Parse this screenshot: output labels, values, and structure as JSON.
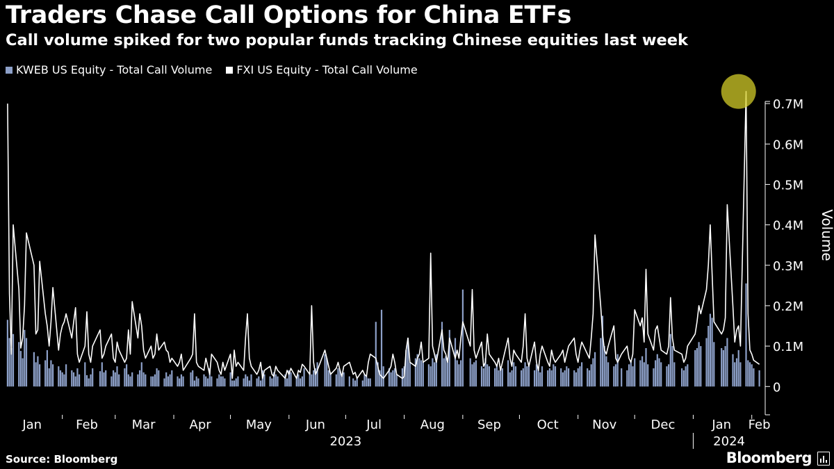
{
  "header": {
    "title": "Traders Chase Call Options for China ETFs",
    "subtitle": "Call volume spiked for two popular funds tracking Chinese equities last week"
  },
  "footer": {
    "source": "Source: Bloomberg",
    "brand": "Bloomberg"
  },
  "colors": {
    "background": "#000000",
    "kweb": "#8da0c8",
    "fxi": "#ffffff",
    "highlight": "#d9d22a"
  },
  "chart_data": {
    "type": "bar+line",
    "title": "Traders Chase Call Options for China ETFs",
    "subtitle": "Call volume spiked for two popular funds tracking Chinese equities last week",
    "ylabel": "Volume",
    "xlabel": "",
    "ylim": [
      -70000,
      750000
    ],
    "yticks": [
      0,
      100000,
      200000,
      300000,
      400000,
      500000,
      600000,
      700000
    ],
    "ytick_labels": [
      "0",
      "0.1M",
      "0.2M",
      "0.3M",
      "0.4M",
      "0.5M",
      "0.6M",
      "0.7M"
    ],
    "xlim": [
      "2022-12-30",
      "2024-02-07"
    ],
    "x_month_labels": [
      {
        "date": "2023-01-16",
        "label": "Jan"
      },
      {
        "date": "2023-02-14",
        "label": "Feb"
      },
      {
        "date": "2023-03-16",
        "label": "Mar"
      },
      {
        "date": "2023-04-15",
        "label": "Apr"
      },
      {
        "date": "2023-05-16",
        "label": "May"
      },
      {
        "date": "2023-06-15",
        "label": "Jun"
      },
      {
        "date": "2023-07-16",
        "label": "Jul"
      },
      {
        "date": "2023-08-16",
        "label": "Aug"
      },
      {
        "date": "2023-09-15",
        "label": "Sep"
      },
      {
        "date": "2023-10-16",
        "label": "Oct"
      },
      {
        "date": "2023-11-15",
        "label": "Nov"
      },
      {
        "date": "2023-12-16",
        "label": "Dec"
      },
      {
        "date": "2024-01-16",
        "label": "Jan"
      },
      {
        "date": "2024-02-05",
        "label": "Feb"
      }
    ],
    "x_month_boundaries": [
      "2023-02-01",
      "2023-03-01",
      "2023-04-01",
      "2023-05-01",
      "2023-06-01",
      "2023-07-01",
      "2023-08-01",
      "2023-09-01",
      "2023-10-01",
      "2023-11-01",
      "2023-12-01",
      "2024-01-01",
      "2024-02-01"
    ],
    "x_year_labels": [
      {
        "date": "2023-07-01",
        "label": "2023"
      },
      {
        "date": "2024-01-20",
        "label": "2024"
      }
    ],
    "year_boundary": "2024-01-01",
    "legend_position": "top-left",
    "grid": false,
    "highlight": {
      "series": "FXI US Equity - Total Call Volume",
      "date": "2024-01-25",
      "value": 730000
    },
    "dates_note": "Trading-day sequence from 2023-01-03 to 2024-02-02 in order.",
    "series": [
      {
        "name": "KWEB US Equity - Total Call Volume",
        "style": "bar",
        "color": "#8da0c8",
        "values": [
          165000,
          120000,
          95000,
          130000,
          110000,
          88000,
          70000,
          140000,
          120000,
          85000,
          60000,
          75000,
          55000,
          65000,
          90000,
          45000,
          65000,
          55000,
          50000,
          40000,
          35000,
          30000,
          55000,
          40000,
          35000,
          25000,
          45000,
          30000,
          60000,
          28000,
          20000,
          30000,
          45000,
          38000,
          60000,
          35000,
          40000,
          25000,
          40000,
          35000,
          50000,
          30000,
          45000,
          55000,
          30000,
          25000,
          35000,
          30000,
          40000,
          60000,
          35000,
          30000,
          25000,
          25000,
          30000,
          45000,
          40000,
          20000,
          35000,
          25000,
          30000,
          40000,
          25000,
          20000,
          30000,
          25000,
          35000,
          40000,
          15000,
          25000,
          20000,
          30000,
          25000,
          20000,
          45000,
          25000,
          20000,
          30000,
          25000,
          25000,
          20000,
          35000,
          15000,
          15000,
          20000,
          25000,
          20000,
          30000,
          25000,
          15000,
          30000,
          20000,
          25000,
          15000,
          40000,
          30000,
          25000,
          20000,
          35000,
          30000,
          25000,
          30000,
          20000,
          40000,
          35000,
          25000,
          30000,
          20000,
          25000,
          45000,
          35000,
          30000,
          40000,
          45000,
          60000,
          80000,
          70000,
          40000,
          35000,
          30000,
          45000,
          40000,
          30000,
          35000,
          25000,
          20000,
          15000,
          20000,
          15000,
          30000,
          25000,
          20000,
          20000,
          160000,
          60000,
          40000,
          190000,
          50000,
          45000,
          35000,
          40000,
          45000,
          30000,
          45000,
          50000,
          90000,
          120000,
          60000,
          70000,
          80000,
          70000,
          65000,
          60000,
          55000,
          50000,
          70000,
          60000,
          80000,
          160000,
          70000,
          75000,
          60000,
          140000,
          120000,
          65000,
          55000,
          65000,
          240000,
          70000,
          55000,
          60000,
          65000,
          50000,
          45000,
          70000,
          55000,
          50000,
          45000,
          55000,
          40000,
          50000,
          45000,
          65000,
          35000,
          40000,
          60000,
          50000,
          40000,
          45000,
          60000,
          50000,
          50000,
          40000,
          55000,
          45000,
          35000,
          50000,
          40000,
          45000,
          40000,
          55000,
          50000,
          45000,
          35000,
          40000,
          50000,
          45000,
          40000,
          35000,
          45000,
          50000,
          60000,
          45000,
          40000,
          55000,
          70000,
          85000,
          120000,
          175000,
          100000,
          75000,
          60000,
          50000,
          55000,
          80000,
          45000,
          40000,
          55000,
          60000,
          50000,
          70000,
          65000,
          75000,
          60000,
          95000,
          55000,
          45000,
          65000,
          80000,
          70000,
          60000,
          50000,
          55000,
          130000,
          100000,
          60000,
          45000,
          40000,
          50000,
          55000,
          90000,
          95000,
          110000,
          100000,
          120000,
          150000,
          180000,
          170000,
          110000,
          95000,
          90000,
          100000,
          120000,
          80000,
          60000,
          70000,
          90000,
          60000,
          255000,
          65000,
          60000,
          55000,
          45000,
          40000
        ]
      },
      {
        "name": "FXI US Equity - Total Call Volume",
        "style": "line",
        "color": "#ffffff",
        "values": [
          700000,
          230000,
          80000,
          400000,
          240000,
          95000,
          120000,
          200000,
          380000,
          300000,
          130000,
          140000,
          310000,
          180000,
          150000,
          100000,
          160000,
          245000,
          90000,
          130000,
          150000,
          160000,
          180000,
          120000,
          160000,
          195000,
          80000,
          60000,
          100000,
          185000,
          80000,
          60000,
          100000,
          140000,
          70000,
          80000,
          100000,
          130000,
          70000,
          60000,
          110000,
          90000,
          60000,
          70000,
          140000,
          80000,
          210000,
          120000,
          180000,
          150000,
          90000,
          70000,
          100000,
          70000,
          80000,
          130000,
          90000,
          110000,
          90000,
          85000,
          60000,
          70000,
          50000,
          60000,
          80000,
          40000,
          70000,
          80000,
          180000,
          60000,
          50000,
          40000,
          70000,
          50000,
          30000,
          80000,
          60000,
          40000,
          30000,
          60000,
          40000,
          80000,
          20000,
          90000,
          50000,
          60000,
          40000,
          120000,
          180000,
          70000,
          50000,
          30000,
          40000,
          60000,
          20000,
          40000,
          50000,
          30000,
          25000,
          50000,
          40000,
          20000,
          40000,
          30000,
          45000,
          20000,
          40000,
          35000,
          55000,
          50000,
          30000,
          200000,
          60000,
          30000,
          40000,
          90000,
          70000,
          50000,
          30000,
          45000,
          60000,
          40000,
          25000,
          50000,
          60000,
          30000,
          35000,
          20000,
          40000,
          30000,
          25000,
          60000,
          80000,
          70000,
          50000,
          30000,
          25000,
          20000,
          40000,
          50000,
          80000,
          60000,
          30000,
          20000,
          25000,
          90000,
          120000,
          60000,
          50000,
          70000,
          80000,
          110000,
          60000,
          70000,
          330000,
          100000,
          80000,
          60000,
          140000,
          90000,
          80000,
          60000,
          120000,
          70000,
          90000,
          70000,
          120000,
          160000,
          100000,
          240000,
          90000,
          70000,
          110000,
          50000,
          60000,
          130000,
          80000,
          60000,
          50000,
          70000,
          40000,
          60000,
          120000,
          70000,
          50000,
          90000,
          80000,
          60000,
          100000,
          180000,
          70000,
          50000,
          110000,
          60000,
          40000,
          80000,
          100000,
          60000,
          50000,
          90000,
          70000,
          60000,
          80000,
          90000,
          60000,
          80000,
          100000,
          120000,
          80000,
          60000,
          90000,
          110000,
          80000,
          70000,
          120000,
          180000,
          375000,
          200000,
          130000,
          90000,
          80000,
          100000,
          150000,
          70000,
          60000,
          80000,
          100000,
          70000,
          60000,
          80000,
          190000,
          150000,
          170000,
          110000,
          290000,
          130000,
          90000,
          140000,
          150000,
          120000,
          90000,
          80000,
          100000,
          220000,
          120000,
          90000,
          80000,
          60000,
          70000,
          100000,
          130000,
          160000,
          200000,
          180000,
          240000,
          300000,
          400000,
          280000,
          160000,
          130000,
          140000,
          170000,
          450000,
          200000,
          110000,
          140000,
          150000,
          100000,
          730000,
          180000,
          90000,
          80000,
          65000,
          55000
        ]
      }
    ]
  }
}
